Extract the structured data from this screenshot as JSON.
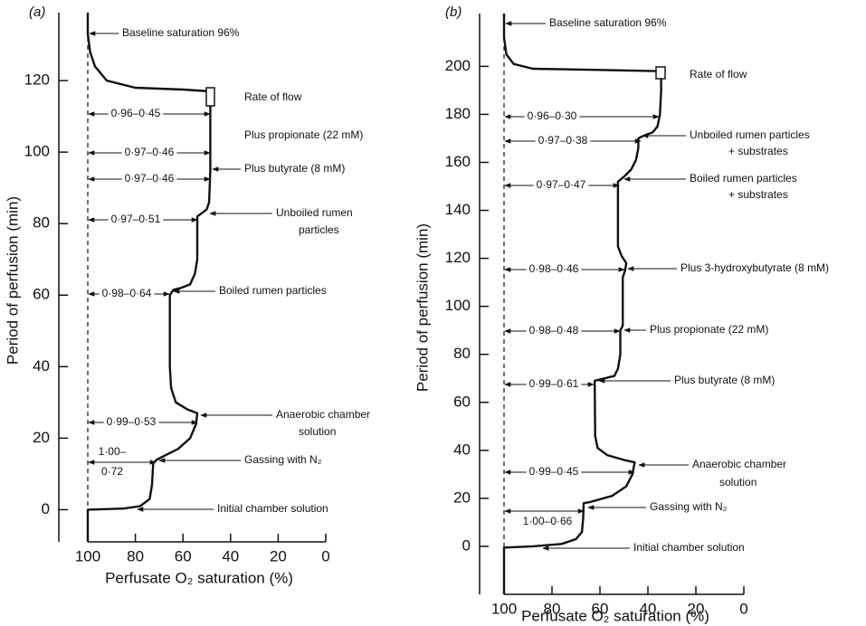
{
  "chart_data": [
    {
      "type": "line",
      "label": "(a)",
      "xlabel": "Perfusate O₂ saturation (%)",
      "ylabel": "Period of perfusion (min)",
      "xlim": [
        100,
        0
      ],
      "xticks": [
        100,
        80,
        60,
        40,
        20,
        0
      ],
      "ylim": [
        -9,
        139
      ],
      "yticks": [
        0,
        20,
        40,
        60,
        80,
        100,
        120
      ],
      "color": "#111111",
      "x": [
        100,
        100,
        85,
        78,
        74,
        73,
        72.5,
        71,
        68,
        62,
        57,
        54.5,
        54,
        58,
        63,
        65,
        65.5,
        65.5,
        64,
        61,
        57,
        55,
        54,
        54,
        52,
        50,
        49,
        48.5,
        48.5,
        60,
        80,
        92,
        97,
        99,
        100,
        100
      ],
      "values": [
        -9,
        0,
        0.3,
        1,
        3,
        7,
        13,
        14,
        15,
        17,
        20,
        24,
        27,
        28,
        30,
        34,
        40,
        60,
        61.5,
        62,
        63,
        66,
        70,
        82,
        83,
        84,
        86,
        95,
        117,
        117.5,
        118,
        120,
        124,
        128,
        133,
        139
      ],
      "annotations": [
        {
          "lines": [
            "Baseline saturation 96%"
          ]
        },
        {
          "lines": [
            "Rate of flow"
          ]
        },
        {
          "lines": [
            "Plus propionate (22 mM)"
          ]
        },
        {
          "lines": [
            "Plus butyrate (8 mM)"
          ]
        },
        {
          "lines": [
            "Unboiled rumen",
            "particles"
          ]
        },
        {
          "lines": [
            "Boiled rumen particles"
          ]
        },
        {
          "lines": [
            "Anaerobic chamber",
            "solution"
          ]
        },
        {
          "lines": [
            "Gassing with N₂"
          ]
        },
        {
          "lines": [
            "Initial chamber solution"
          ]
        }
      ],
      "ranges": [
        {
          "lines": [
            "0·96–0·45"
          ]
        },
        {
          "lines": [
            "0·97–0·46"
          ]
        },
        {
          "lines": [
            "0·97–0·46"
          ]
        },
        {
          "lines": [
            "0·97–0·51"
          ]
        },
        {
          "lines": [
            "0·98–0·64"
          ]
        },
        {
          "lines": [
            "0·99–0·53"
          ]
        },
        {
          "lines": [
            "1·00–",
            "0·72"
          ]
        }
      ]
    },
    {
      "type": "line",
      "label": "(b)",
      "xlabel": "Perfusate O₂ saturation (%)",
      "ylabel": "Period of perfusion (min)",
      "xlim": [
        100,
        0
      ],
      "xticks": [
        100,
        80,
        60,
        40,
        20,
        0
      ],
      "ylim": [
        -20,
        222
      ],
      "yticks": [
        0,
        20,
        40,
        60,
        80,
        100,
        120,
        140,
        160,
        180,
        200
      ],
      "color": "#111111",
      "x": [
        100,
        100,
        88,
        76,
        70,
        67.5,
        67,
        66.8,
        64,
        55,
        49,
        46.5,
        45.5,
        50,
        57,
        61,
        62,
        62.2,
        58,
        54,
        52.5,
        51.5,
        51.5,
        50.5,
        50.5,
        49.5,
        49,
        51,
        52.5,
        52.5,
        50,
        47,
        45,
        44,
        44,
        42,
        38,
        36,
        35,
        34.5,
        34.5,
        60,
        88,
        96,
        99,
        100,
        100
      ],
      "values": [
        -20,
        -0.5,
        0,
        1,
        3,
        6,
        12,
        18,
        18.5,
        21,
        25,
        30,
        35,
        36,
        38,
        41,
        46,
        69,
        70,
        71,
        74,
        80,
        90,
        92,
        112,
        115,
        118,
        121,
        125,
        152,
        154,
        157,
        161,
        166,
        170,
        171,
        172.5,
        175,
        180,
        190,
        198,
        198.5,
        199,
        201,
        205,
        212,
        222
      ],
      "annotations": [
        {
          "lines": [
            "Baseline saturation 96%"
          ]
        },
        {
          "lines": [
            "Rate of flow"
          ]
        },
        {
          "lines": [
            "Unboiled rumen particles",
            "+ substrates"
          ]
        },
        {
          "lines": [
            "Boiled rumen particles",
            "+ substrates"
          ]
        },
        {
          "lines": [
            "Plus 3-hydroxybutyrate (8 mM)"
          ]
        },
        {
          "lines": [
            "Plus propionate (22 mM)"
          ]
        },
        {
          "lines": [
            "Plus butyrate (8 mM)"
          ]
        },
        {
          "lines": [
            "Anaerobic chamber",
            "solution"
          ]
        },
        {
          "lines": [
            "Gassing with N₂"
          ]
        },
        {
          "lines": [
            "Initial chamber solution"
          ]
        }
      ],
      "ranges": [
        {
          "lines": [
            "0·96–0·30"
          ]
        },
        {
          "lines": [
            "0·97–0·38"
          ]
        },
        {
          "lines": [
            "0·97–0·47"
          ]
        },
        {
          "lines": [
            "0·98–0·46"
          ]
        },
        {
          "lines": [
            "0·98–0·48"
          ]
        },
        {
          "lines": [
            "0·99–0·61"
          ]
        },
        {
          "lines": [
            "0·99–0·45"
          ]
        },
        {
          "lines": [
            "1·00–0·66"
          ]
        }
      ]
    }
  ]
}
